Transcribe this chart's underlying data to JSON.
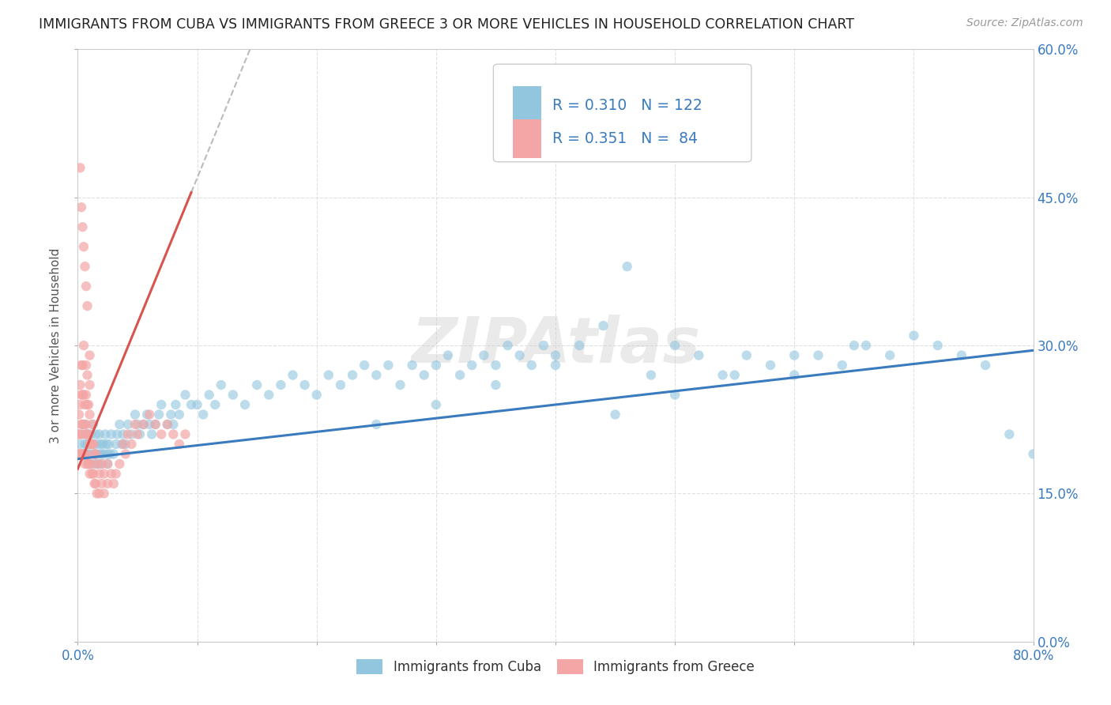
{
  "title": "IMMIGRANTS FROM CUBA VS IMMIGRANTS FROM GREECE 3 OR MORE VEHICLES IN HOUSEHOLD CORRELATION CHART",
  "source": "Source: ZipAtlas.com",
  "ylabel": "3 or more Vehicles in Household",
  "yaxis_ticks": [
    0,
    0.15,
    0.3,
    0.45,
    0.6
  ],
  "xaxis_ticks": [
    0,
    0.1,
    0.2,
    0.3,
    0.4,
    0.5,
    0.6,
    0.7,
    0.8
  ],
  "xlim": [
    0,
    0.8
  ],
  "ylim": [
    0,
    0.6
  ],
  "cuba_R": 0.31,
  "cuba_N": 122,
  "greece_R": 0.351,
  "greece_N": 84,
  "cuba_color": "#92c5de",
  "greece_color": "#f4a6a6",
  "cuba_trend_color": "#3a7bbf",
  "greece_trend_color": "#d9534f",
  "watermark": "ZIPAtlas",
  "watermark_color": "#d0d0d0",
  "legend_label_cuba": "Immigrants from Cuba",
  "legend_label_greece": "Immigrants from Greece",
  "background_color": "#ffffff",
  "grid_color": "#e0e0e0",
  "title_color": "#222222",
  "axis_label_color": "#3a7bbf",
  "cuba_scatter_x": [
    0.002,
    0.004,
    0.005,
    0.006,
    0.006,
    0.007,
    0.008,
    0.008,
    0.009,
    0.01,
    0.01,
    0.011,
    0.012,
    0.013,
    0.013,
    0.014,
    0.015,
    0.015,
    0.016,
    0.017,
    0.018,
    0.018,
    0.019,
    0.02,
    0.02,
    0.021,
    0.022,
    0.023,
    0.024,
    0.025,
    0.025,
    0.026,
    0.027,
    0.028,
    0.03,
    0.032,
    0.033,
    0.035,
    0.037,
    0.038,
    0.04,
    0.042,
    0.045,
    0.048,
    0.05,
    0.052,
    0.055,
    0.058,
    0.06,
    0.062,
    0.065,
    0.068,
    0.07,
    0.075,
    0.078,
    0.08,
    0.082,
    0.085,
    0.09,
    0.095,
    0.1,
    0.105,
    0.11,
    0.115,
    0.12,
    0.13,
    0.14,
    0.15,
    0.16,
    0.17,
    0.18,
    0.19,
    0.2,
    0.21,
    0.22,
    0.23,
    0.24,
    0.25,
    0.26,
    0.27,
    0.28,
    0.29,
    0.3,
    0.31,
    0.32,
    0.33,
    0.34,
    0.35,
    0.36,
    0.37,
    0.38,
    0.39,
    0.4,
    0.42,
    0.44,
    0.46,
    0.48,
    0.5,
    0.52,
    0.54,
    0.56,
    0.58,
    0.6,
    0.62,
    0.64,
    0.66,
    0.68,
    0.7,
    0.72,
    0.74,
    0.76,
    0.78,
    0.8,
    0.25,
    0.3,
    0.35,
    0.4,
    0.45,
    0.5,
    0.55,
    0.6,
    0.65
  ],
  "cuba_scatter_y": [
    0.2,
    0.21,
    0.19,
    0.2,
    0.22,
    0.19,
    0.21,
    0.2,
    0.19,
    0.2,
    0.18,
    0.21,
    0.19,
    0.2,
    0.22,
    0.18,
    0.19,
    0.21,
    0.2,
    0.18,
    0.19,
    0.21,
    0.2,
    0.19,
    0.18,
    0.2,
    0.19,
    0.21,
    0.2,
    0.19,
    0.18,
    0.2,
    0.19,
    0.21,
    0.19,
    0.2,
    0.21,
    0.22,
    0.2,
    0.21,
    0.2,
    0.22,
    0.21,
    0.23,
    0.22,
    0.21,
    0.22,
    0.23,
    0.22,
    0.21,
    0.22,
    0.23,
    0.24,
    0.22,
    0.23,
    0.22,
    0.24,
    0.23,
    0.25,
    0.24,
    0.24,
    0.23,
    0.25,
    0.24,
    0.26,
    0.25,
    0.24,
    0.26,
    0.25,
    0.26,
    0.27,
    0.26,
    0.25,
    0.27,
    0.26,
    0.27,
    0.28,
    0.27,
    0.28,
    0.26,
    0.28,
    0.27,
    0.28,
    0.29,
    0.27,
    0.28,
    0.29,
    0.28,
    0.3,
    0.29,
    0.28,
    0.3,
    0.29,
    0.3,
    0.32,
    0.38,
    0.27,
    0.3,
    0.29,
    0.27,
    0.29,
    0.28,
    0.27,
    0.29,
    0.28,
    0.3,
    0.29,
    0.31,
    0.3,
    0.29,
    0.28,
    0.21,
    0.19,
    0.22,
    0.24,
    0.26,
    0.28,
    0.23,
    0.25,
    0.27,
    0.29,
    0.3
  ],
  "greece_scatter_x": [
    0.001,
    0.001,
    0.001,
    0.002,
    0.002,
    0.002,
    0.002,
    0.003,
    0.003,
    0.003,
    0.003,
    0.004,
    0.004,
    0.004,
    0.004,
    0.005,
    0.005,
    0.005,
    0.005,
    0.006,
    0.006,
    0.006,
    0.007,
    0.007,
    0.007,
    0.007,
    0.008,
    0.008,
    0.008,
    0.008,
    0.009,
    0.009,
    0.009,
    0.01,
    0.01,
    0.01,
    0.01,
    0.01,
    0.011,
    0.011,
    0.012,
    0.012,
    0.012,
    0.013,
    0.013,
    0.014,
    0.014,
    0.015,
    0.015,
    0.016,
    0.016,
    0.018,
    0.018,
    0.02,
    0.02,
    0.022,
    0.022,
    0.025,
    0.025,
    0.028,
    0.03,
    0.032,
    0.035,
    0.038,
    0.04,
    0.042,
    0.045,
    0.048,
    0.05,
    0.055,
    0.06,
    0.065,
    0.07,
    0.075,
    0.08,
    0.085,
    0.09,
    0.002,
    0.003,
    0.004,
    0.005,
    0.006,
    0.007,
    0.008
  ],
  "greece_scatter_y": [
    0.19,
    0.21,
    0.23,
    0.19,
    0.21,
    0.24,
    0.26,
    0.19,
    0.22,
    0.25,
    0.28,
    0.19,
    0.22,
    0.25,
    0.28,
    0.19,
    0.22,
    0.25,
    0.3,
    0.18,
    0.21,
    0.24,
    0.19,
    0.22,
    0.25,
    0.28,
    0.18,
    0.21,
    0.24,
    0.27,
    0.18,
    0.21,
    0.24,
    0.17,
    0.2,
    0.23,
    0.26,
    0.29,
    0.18,
    0.2,
    0.17,
    0.2,
    0.22,
    0.17,
    0.2,
    0.16,
    0.19,
    0.16,
    0.19,
    0.15,
    0.18,
    0.15,
    0.17,
    0.16,
    0.18,
    0.15,
    0.17,
    0.16,
    0.18,
    0.17,
    0.16,
    0.17,
    0.18,
    0.2,
    0.19,
    0.21,
    0.2,
    0.22,
    0.21,
    0.22,
    0.23,
    0.22,
    0.21,
    0.22,
    0.21,
    0.2,
    0.21,
    0.48,
    0.44,
    0.42,
    0.4,
    0.38,
    0.36,
    0.34
  ],
  "greece_trend_x0": 0.0,
  "greece_trend_y0": 0.175,
  "greece_trend_x1": 0.095,
  "greece_trend_y1": 0.455,
  "cuba_trend_x0": 0.0,
  "cuba_trend_y0": 0.185,
  "cuba_trend_x1": 0.8,
  "cuba_trend_y1": 0.295
}
